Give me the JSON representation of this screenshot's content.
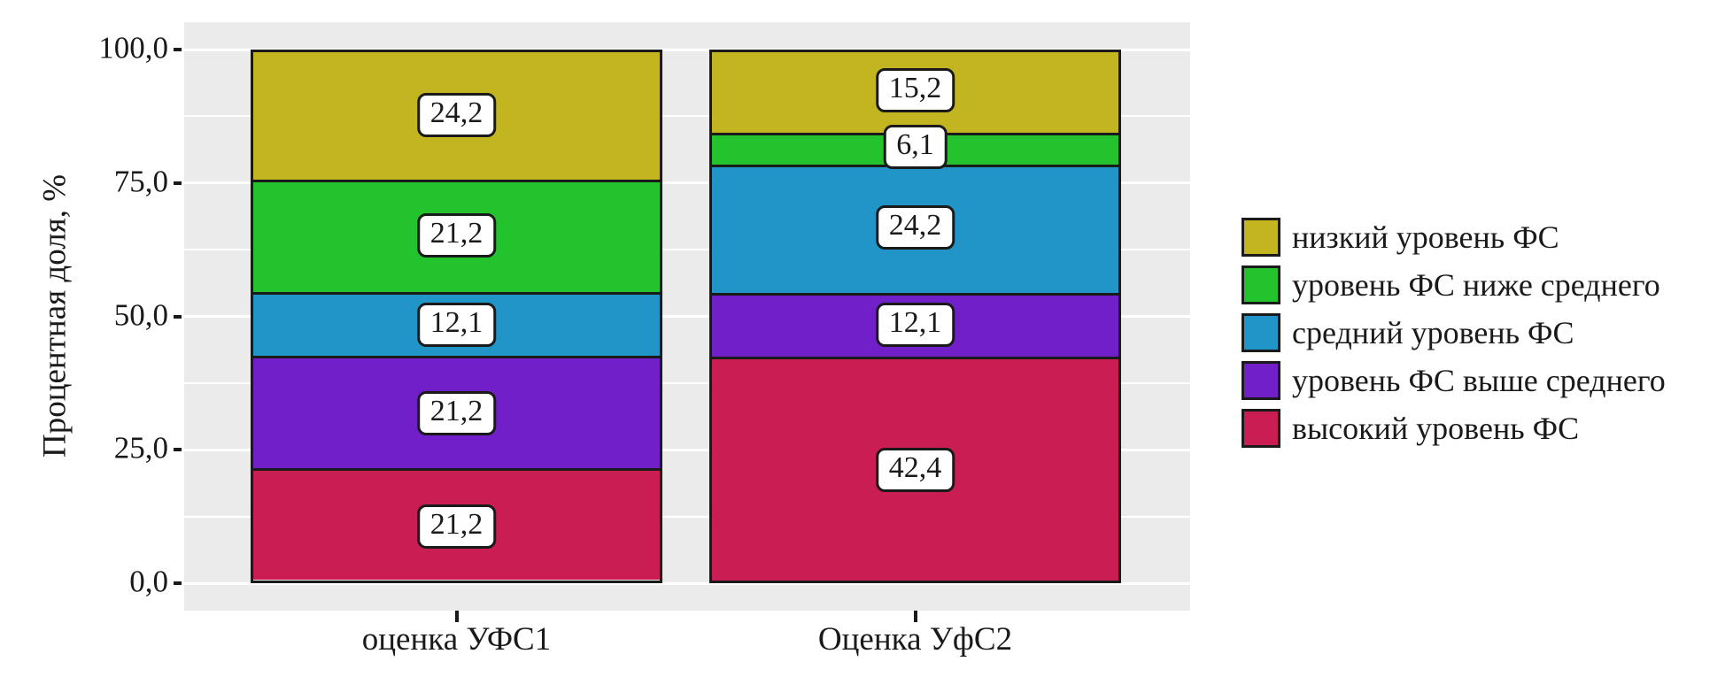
{
  "chart_data": {
    "type": "bar",
    "subtype": "stacked-percent",
    "title": "",
    "xlabel": "",
    "ylabel": "Процентная доля, %",
    "ylim": [
      0,
      100
    ],
    "grid": true,
    "legend_position": "right",
    "panel_background": "#EBEBEB",
    "gridline_color": "#FFFFFF",
    "bar_border_color": "#1A1A1A",
    "label_box": {
      "background": "#FFFFFF",
      "border": "#1A1A1A",
      "text": "#1A1A1A"
    },
    "categories": [
      "оценка УФС1",
      "Оценка УфС2"
    ],
    "series": [
      {
        "name": "высокий уровень ФС",
        "color": "#C91D53",
        "values": [
          21.2,
          42.4
        ],
        "labels": [
          "21,2",
          "42,4"
        ]
      },
      {
        "name": "уровень ФС выше среднего",
        "color": "#7120C9",
        "values": [
          21.2,
          12.1
        ],
        "labels": [
          "21,2",
          "12,1"
        ]
      },
      {
        "name": "средний уровень ФС",
        "color": "#2295C8",
        "values": [
          12.1,
          24.2
        ],
        "labels": [
          "12,1",
          "24,2"
        ]
      },
      {
        "name": "уровень ФС ниже среднего",
        "color": "#22C32D",
        "values": [
          21.2,
          6.1
        ],
        "labels": [
          "21,2",
          "6,1"
        ]
      },
      {
        "name": "низкий уровень ФС",
        "color": "#C3B51F",
        "values": [
          24.2,
          15.2
        ],
        "labels": [
          "24,2",
          "15,2"
        ]
      }
    ],
    "yticks": [
      {
        "value": 0,
        "label": "0,0"
      },
      {
        "value": 25,
        "label": "25,0"
      },
      {
        "value": 50,
        "label": "50,0"
      },
      {
        "value": 75,
        "label": "75,0"
      },
      {
        "value": 100,
        "label": "100,0"
      }
    ],
    "minor_gridlines": [
      12.5,
      37.5,
      62.5,
      87.5
    ],
    "legend_order": [
      "низкий уровень ФС",
      "уровень ФС ниже среднего",
      "средний уровень ФС",
      "уровень ФС выше среднего",
      "высокий уровень ФС"
    ]
  }
}
